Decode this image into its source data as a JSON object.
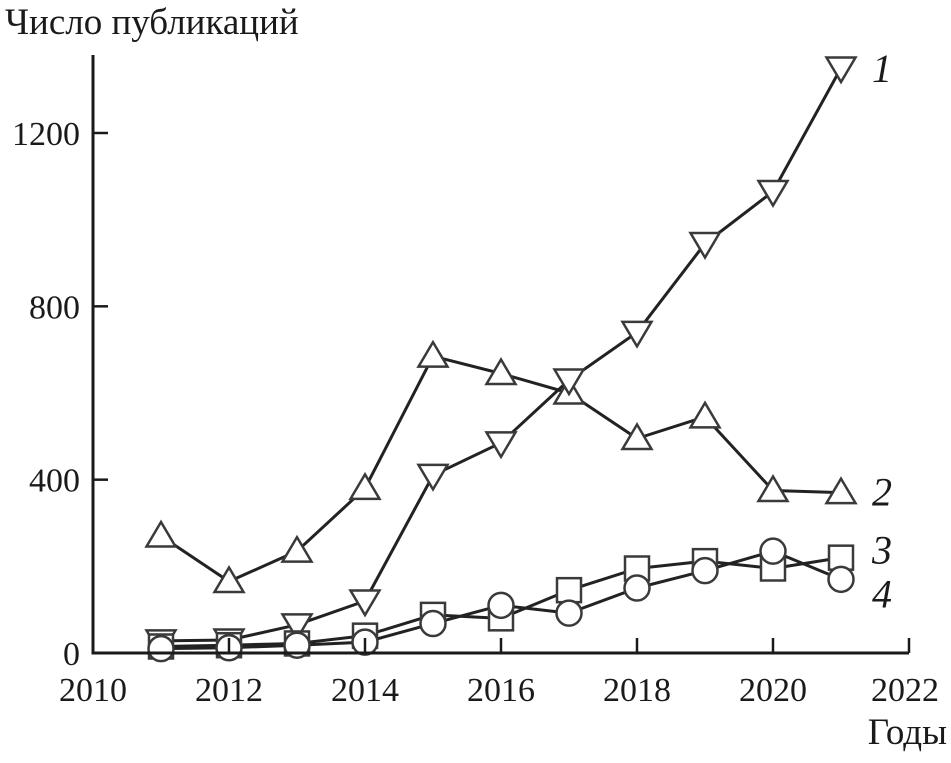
{
  "page": {
    "title": "Число публикаций",
    "xaxis_title": "Годы"
  },
  "chart_data": {
    "type": "line",
    "title": "Число публикаций",
    "xlabel": "Годы",
    "ylabel": "Число публикаций",
    "x": [
      2011,
      2012,
      2013,
      2014,
      2015,
      2016,
      2017,
      2018,
      2019,
      2020,
      2021
    ],
    "series": [
      {
        "name": "1",
        "marker": "triangle-down",
        "values": [
          28,
          30,
          65,
          120,
          410,
          485,
          630,
          740,
          945,
          1065,
          1350
        ]
      },
      {
        "name": "2",
        "marker": "triangle-up",
        "values": [
          270,
          165,
          235,
          380,
          685,
          645,
          600,
          495,
          545,
          375,
          370
        ]
      },
      {
        "name": "3",
        "marker": "square",
        "values": [
          15,
          18,
          22,
          40,
          88,
          80,
          145,
          195,
          212,
          195,
          220
        ]
      },
      {
        "name": "4",
        "marker": "circle",
        "values": [
          10,
          12,
          18,
          25,
          68,
          110,
          92,
          150,
          190,
          235,
          170
        ]
      }
    ],
    "xticks": [
      2010,
      2012,
      2014,
      2016,
      2018,
      2020,
      2022
    ],
    "yticks": [
      0,
      400,
      800,
      1200
    ],
    "xlim": [
      2010,
      2022
    ],
    "ylim": [
      0,
      1380
    ],
    "grid": false,
    "legend_position": "numbers right of last data points",
    "label_dy": [
      5,
      4,
      -3,
      19
    ],
    "colors": {
      "line": "#222222",
      "marker_stroke": "#3a3a3a",
      "marker_fill": "#ffffff",
      "text": "#1a1a1a",
      "axis": "#1a1a1a"
    }
  }
}
